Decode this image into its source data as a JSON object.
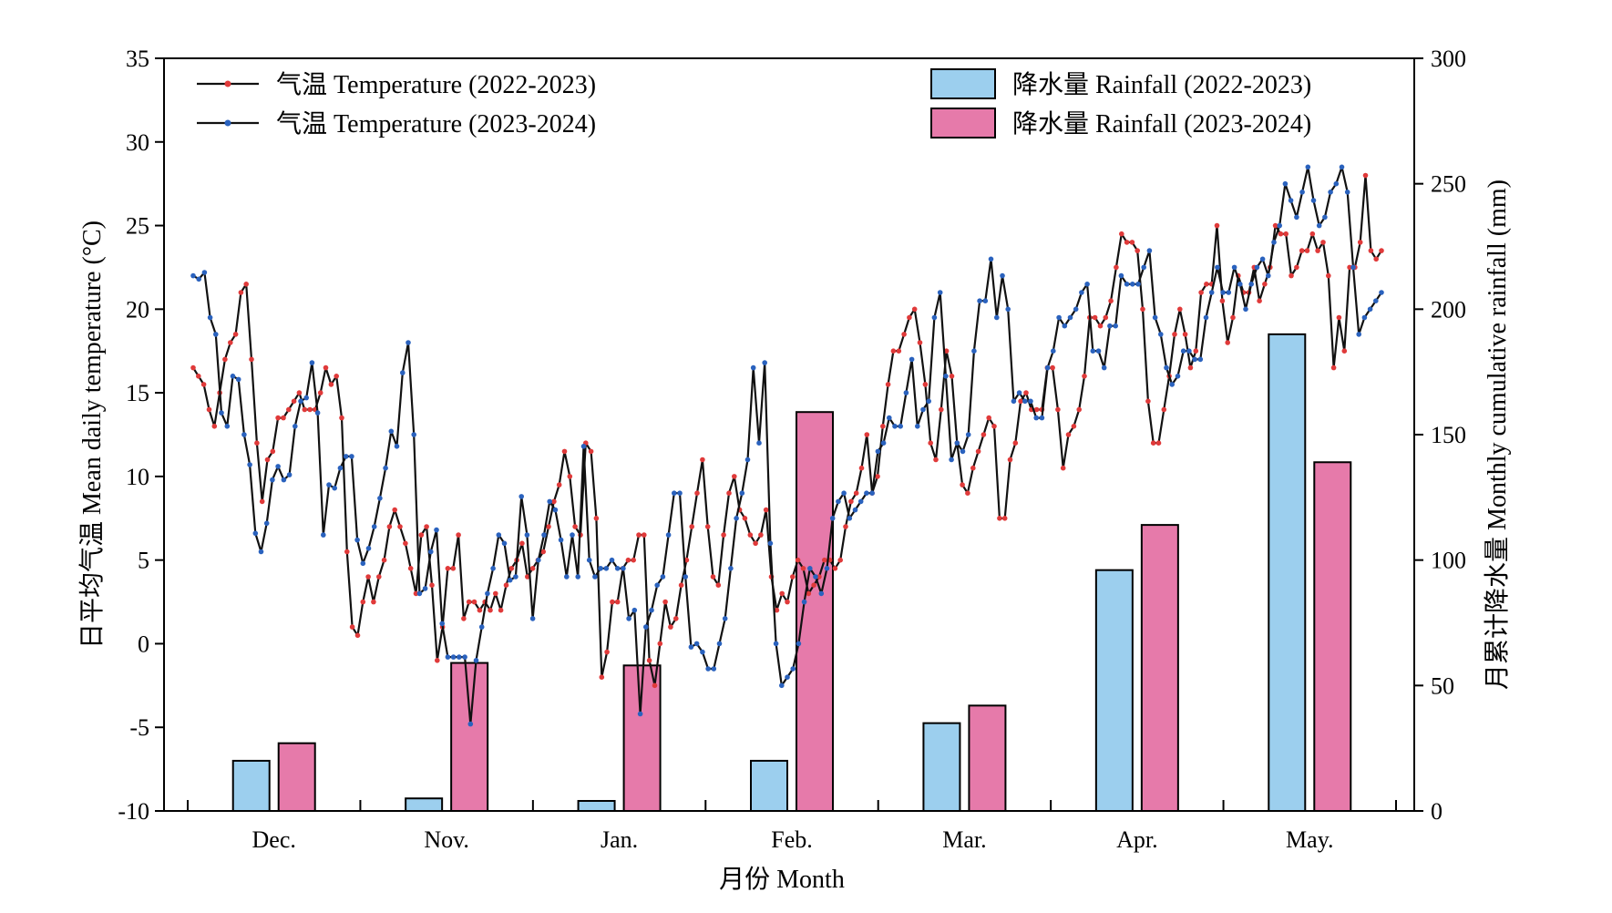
{
  "chart_data": {
    "type": "bar+line",
    "xlabel": "月份 Month",
    "ylabel_left": "日平均气温 Mean daily temperature (°C)",
    "ylabel_right": "月累计降水量 Monthly cumulative rainfall (mm)",
    "ylim_left": [
      -10,
      35
    ],
    "yticks_left": [
      -10,
      -5,
      0,
      5,
      10,
      15,
      20,
      25,
      30,
      35
    ],
    "ylim_right": [
      0,
      300
    ],
    "yticks_right": [
      0,
      50,
      100,
      150,
      200,
      250,
      300
    ],
    "categories": [
      "Dec.",
      "Nov.",
      "Jan.",
      "Feb.",
      "Mar.",
      "Apr.",
      "May."
    ],
    "legend_placement": "top",
    "grid": false,
    "rainfall": [
      {
        "name": "降水量 Rainfall (2022-2023)",
        "color": "#9ccfee",
        "values": [
          20,
          5,
          4,
          20,
          35,
          96,
          190
        ]
      },
      {
        "name": "降水量 Rainfall (2023-2024)",
        "color": "#e67aaa",
        "values": [
          27,
          59,
          58,
          159,
          42,
          114,
          139
        ]
      }
    ],
    "temperature": [
      {
        "name": "气温 Temperature (2022-2023)",
        "color": "#e03a3a",
        "values": [
          16.5,
          16.0,
          15.5,
          14.0,
          13.0,
          15.0,
          17.0,
          18.0,
          18.5,
          21.0,
          21.5,
          17.0,
          12.0,
          8.5,
          11.0,
          11.5,
          13.5,
          13.5,
          14.0,
          14.5,
          15.0,
          14.0,
          14.0,
          14.0,
          15.0,
          16.5,
          15.5,
          16.0,
          13.5,
          5.5,
          1.0,
          0.5,
          2.5,
          4.0,
          2.5,
          4.0,
          5.0,
          7.0,
          8.0,
          7.0,
          6.0,
          4.5,
          3.0,
          6.5,
          7.0,
          3.5,
          -1.0,
          1.0,
          4.5,
          4.5,
          6.5,
          1.5,
          2.5,
          2.5,
          2.0,
          2.5,
          2.0,
          3.0,
          2.0,
          3.5,
          4.5,
          5.0,
          6.0,
          4.0,
          4.5,
          5.0,
          5.5,
          7.0,
          8.5,
          9.5,
          11.5,
          10.0,
          7.0,
          6.5,
          12.0,
          11.5,
          7.5,
          -2.0,
          -0.5,
          2.5,
          2.5,
          4.5,
          5.0,
          5.0,
          6.5,
          6.5,
          -1.0,
          -2.5,
          0.0,
          2.5,
          1.0,
          1.5,
          3.5,
          5.0,
          7.0,
          9.0,
          11.0,
          7.0,
          4.0,
          3.5,
          6.5,
          9.0,
          10.0,
          8.0,
          7.5,
          6.5,
          6.0,
          6.5,
          8.0,
          4.0,
          2.0,
          3.0,
          2.5,
          4.0,
          5.0,
          4.5,
          3.0,
          3.5,
          4.0,
          5.0,
          5.0,
          4.5,
          5.0,
          7.0,
          8.5,
          9.0,
          10.5,
          12.5,
          9.0,
          10.0,
          13.0,
          15.5,
          17.5,
          17.5,
          18.5,
          19.5,
          20.0,
          18.0,
          15.5,
          12.0,
          11.0,
          14.0,
          17.5,
          16.0,
          12.0,
          9.5,
          9.0,
          10.5,
          11.5,
          12.5,
          13.5,
          13.0,
          7.5,
          7.5,
          11.0,
          12.0,
          14.5,
          15.0,
          14.0,
          14.0,
          14.0,
          16.5,
          16.5,
          14.0,
          10.5,
          12.5,
          13.0,
          14.0,
          16.0,
          19.5,
          19.5,
          19.0,
          19.5,
          20.5,
          22.5,
          24.5,
          24.0,
          24.0,
          23.5,
          20.0,
          14.5,
          12.0,
          12.0,
          14.0,
          16.0,
          18.5,
          20.0,
          18.5,
          16.5,
          17.5,
          21.0,
          21.5,
          21.5,
          25.0,
          20.5,
          18.0,
          19.5,
          22.0,
          21.0,
          21.0,
          22.5,
          20.5,
          21.5,
          22.5,
          25.0,
          24.5,
          24.5,
          22.0,
          22.5,
          23.5,
          23.5,
          24.5,
          23.5,
          24.0,
          22.0,
          16.5,
          19.5,
          17.5,
          22.5,
          22.5,
          24.0,
          28.0,
          23.5,
          23.0,
          23.5
        ]
      },
      {
        "name": "气温 Temperature (2023-2024)",
        "color": "#2a62be",
        "values": [
          22.0,
          21.8,
          22.2,
          19.5,
          18.5,
          13.8,
          13.0,
          16.0,
          15.8,
          12.5,
          10.7,
          6.6,
          5.5,
          7.2,
          9.8,
          10.6,
          9.8,
          10.1,
          13.0,
          14.5,
          14.7,
          16.8,
          13.8,
          6.5,
          9.5,
          9.3,
          10.5,
          11.2,
          11.2,
          6.2,
          4.8,
          5.7,
          7.0,
          8.7,
          10.5,
          12.7,
          11.8,
          16.2,
          18.0,
          12.5,
          3.0,
          3.3,
          5.5,
          6.8,
          1.2,
          -0.8,
          -0.8,
          -0.8,
          -0.8,
          -4.8,
          -1.0,
          1.0,
          3.0,
          4.5,
          6.5,
          6.0,
          3.8,
          4.0,
          8.8,
          6.5,
          1.5,
          5.0,
          6.5,
          8.5,
          8.0,
          6.2,
          4.0,
          6.5,
          4.0,
          11.8,
          5.0,
          4.0,
          4.5,
          4.5,
          5.0,
          4.5,
          4.5,
          1.5,
          2.0,
          -4.2,
          1.0,
          2.0,
          3.5,
          4.0,
          6.5,
          9.0,
          9.0,
          4.0,
          -0.2,
          0.0,
          -0.5,
          -1.5,
          -1.5,
          0.0,
          1.5,
          4.5,
          7.5,
          9.0,
          11.0,
          16.5,
          12.0,
          16.8,
          6.0,
          0.0,
          -2.5,
          -2.0,
          -1.5,
          0.0,
          2.5,
          4.5,
          4.0,
          3.0,
          4.5,
          7.5,
          8.5,
          9.0,
          7.5,
          8.0,
          8.5,
          9.0,
          9.0,
          11.5,
          12.0,
          13.5,
          13.0,
          13.0,
          15.0,
          17.0,
          13.0,
          14.0,
          14.5,
          19.5,
          21.0,
          16.0,
          11.0,
          12.0,
          11.5,
          12.5,
          17.5,
          20.5,
          20.5,
          23.0,
          19.5,
          22.0,
          20.0,
          14.5,
          15.0,
          14.5,
          14.5,
          13.5,
          13.5,
          16.5,
          17.5,
          19.5,
          19.0,
          19.5,
          20.0,
          21.0,
          21.5,
          17.5,
          17.5,
          16.5,
          19.0,
          19.0,
          22.0,
          21.5,
          21.5,
          21.5,
          22.5,
          23.5,
          19.5,
          18.5,
          16.5,
          15.5,
          16.0,
          17.5,
          17.5,
          17.0,
          17.0,
          19.5,
          21.0,
          22.5,
          21.0,
          21.0,
          22.5,
          21.5,
          20.0,
          21.5,
          22.5,
          23.0,
          22.0,
          24.0,
          25.0,
          27.5,
          26.5,
          25.5,
          27.0,
          28.5,
          26.5,
          25.0,
          25.5,
          27.0,
          27.5,
          28.5,
          27.0,
          22.5,
          18.5,
          19.5,
          20.0,
          20.5,
          21.0
        ]
      }
    ]
  }
}
